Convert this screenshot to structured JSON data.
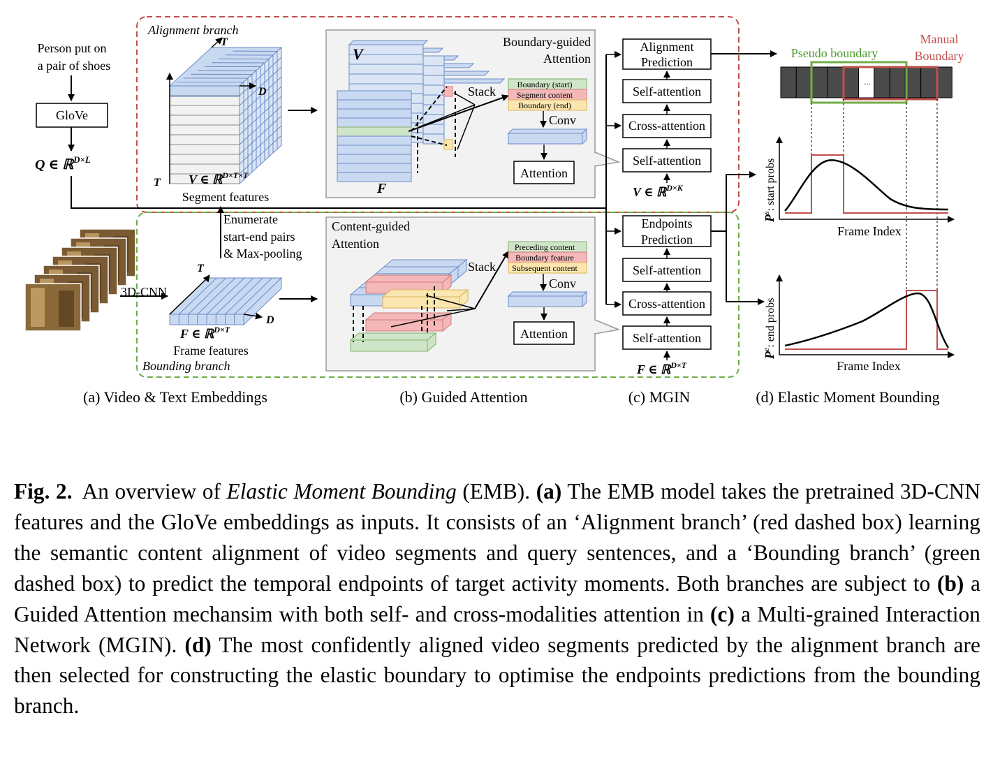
{
  "figure": {
    "query_text": [
      "Person put on",
      "a pair of shoes"
    ],
    "glove_label": "GloVe",
    "q_formula": "Q ∈ ℝ",
    "q_sup": "D×L",
    "alignment_branch_label": "Alignment branch",
    "bounding_branch_label": "Bounding branch",
    "v_formula": "V ∈ ℝ",
    "v_sup": "D×T×T",
    "segment_features_label": "Segment features",
    "axis_T": "T",
    "axis_D": "D",
    "enumerate_text": [
      "Enumerate",
      "start-end pairs",
      "& Max-pooling"
    ],
    "cnn_label": "3D-CNN",
    "f_formula": "F ∈ ℝ",
    "f_sup": "D×T",
    "frame_features_label": "Frame features",
    "boundary_guided_title": [
      "Boundary-guided",
      "Attention"
    ],
    "content_guided_title": [
      "Content-guided",
      "Attention"
    ],
    "cube_V": "V",
    "cube_F": "F",
    "stack_label": "Stack",
    "conv_label": "Conv",
    "attention_label": "Attention",
    "boundary_stack": [
      "Boundary (start)",
      "Segment content",
      "Boundary (end)"
    ],
    "content_stack": [
      "Preceding content",
      "Boundary feature",
      "Subsequent content"
    ],
    "mgin_top": [
      "Alignment",
      "Prediction"
    ],
    "mgin_bottom": [
      "Endpoints",
      "Prediction"
    ],
    "self_attention": "Self-attention",
    "cross_attention": "Cross-attention",
    "mgin_v_formula": "V ∈ ℝ",
    "mgin_v_sup": "D×K",
    "mgin_f_formula": "F ∈ ℝ",
    "mgin_f_sup": "D×T",
    "pseudo_boundary": "Pseudo boundary",
    "manual_boundary": [
      "Manual",
      "Boundary"
    ],
    "ellipsis": "...",
    "ps_label": "P",
    "ps_sup": "s",
    "ps_rest": ": start probs",
    "pe_label": "P",
    "pe_sup": "e",
    "pe_rest": ": end probs",
    "frame_index": "Frame Index",
    "subcaptions": [
      "(a) Video & Text Embeddings",
      "(b) Guided Attention",
      "(c) MGIN",
      "(d) Elastic Moment Bounding"
    ],
    "colors": {
      "red_dash": "#c0504d",
      "green_dash": "#70ad47",
      "blue_cell": "#c9d9f1",
      "green_cell": "#cfe5c8",
      "red_cell": "#f4b8b8",
      "yellow_cell": "#fbe6b0",
      "panel_gray": "#f2f2f2",
      "strip_dark": "#4a4a4a"
    }
  },
  "caption": {
    "label": "Fig. 2.",
    "s1": "An overview of ",
    "s1_i": "Elastic Moment Bounding",
    "s2": " (EMB). ",
    "a": "(a)",
    "s3": " The EMB model takes the pretrained 3D-CNN features and the GloVe embeddings as inputs. It consists of an ‘Alignment branch’ (red dashed box) learning the semantic content alignment of video segments and query sentences, and a ‘Bounding branch’ (green dashed box) to predict the temporal endpoints of target activity moments. Both branches are subject to ",
    "b": "(b)",
    "s4": " a Guided Attention mechansim with both self- and cross-modalities attention in ",
    "c": "(c)",
    "s5": " a Multi-grained Interaction Network (MGIN). ",
    "d": "(d)",
    "s6": " The most confidently aligned video segments predicted by the alignment branch are then selected for constructing the elastic boundary to optimise the endpoints predictions from the bounding branch."
  }
}
